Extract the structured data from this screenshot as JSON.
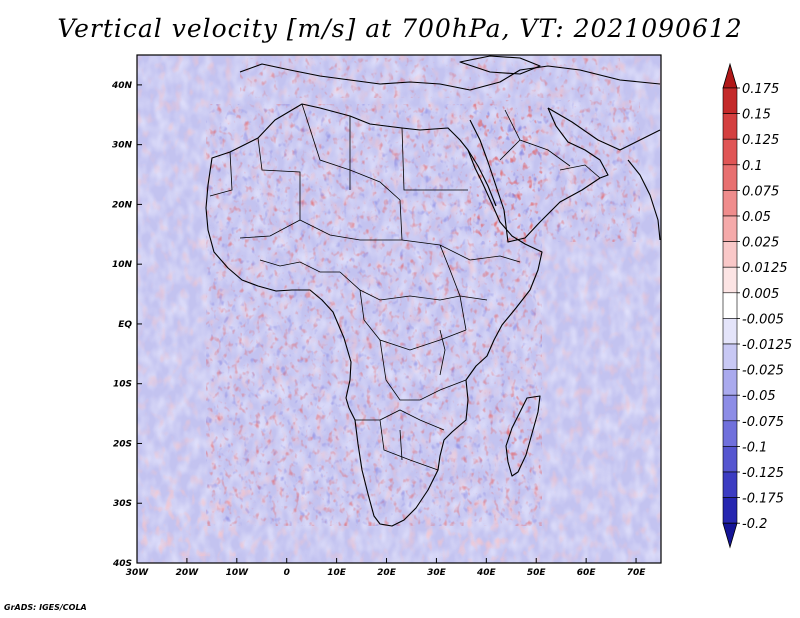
{
  "title": "Vertical velocity [m/s] at 700hPa, VT: 2021090612",
  "footer": "GrADS: IGES/COLA",
  "chart_data": {
    "type": "map",
    "variable": "Vertical velocity",
    "units": "m/s",
    "level": "700hPa",
    "valid_time": "2021090612",
    "region": "Africa, Arabian Peninsula and adjacent oceans",
    "lon_range": [
      -30,
      75
    ],
    "lat_range": [
      -40,
      45
    ],
    "x_ticks": [
      "30W",
      "20W",
      "10W",
      "0",
      "10E",
      "20E",
      "30E",
      "40E",
      "50E",
      "60E",
      "70E"
    ],
    "x_tick_values": [
      -30,
      -20,
      -10,
      0,
      10,
      20,
      30,
      40,
      50,
      60,
      70
    ],
    "y_ticks": [
      "40S",
      "30S",
      "20S",
      "10S",
      "EQ",
      "10N",
      "20N",
      "30N",
      "40N"
    ],
    "y_tick_values": [
      -40,
      -30,
      -20,
      -10,
      0,
      10,
      20,
      30,
      40
    ],
    "colorbar": {
      "labels": [
        "0.175",
        "0.15",
        "0.125",
        "0.1",
        "0.075",
        "0.05",
        "0.025",
        "0.0125",
        "0.005",
        "-0.005",
        "-0.0125",
        "-0.025",
        "-0.05",
        "-0.075",
        "-0.1",
        "-0.125",
        "-0.175",
        "-0.2"
      ],
      "colors": [
        "#b01818",
        "#c42a2a",
        "#d44040",
        "#e05656",
        "#e87070",
        "#ef8c8c",
        "#f5aaaa",
        "#f9c8c8",
        "#fce4e4",
        "#ffffff",
        "#e4e4fa",
        "#c8c8f4",
        "#aaaaee",
        "#8c8ce6",
        "#7070dc",
        "#5656d0",
        "#3c3cc2",
        "#2626b0",
        "#141496"
      ]
    }
  }
}
